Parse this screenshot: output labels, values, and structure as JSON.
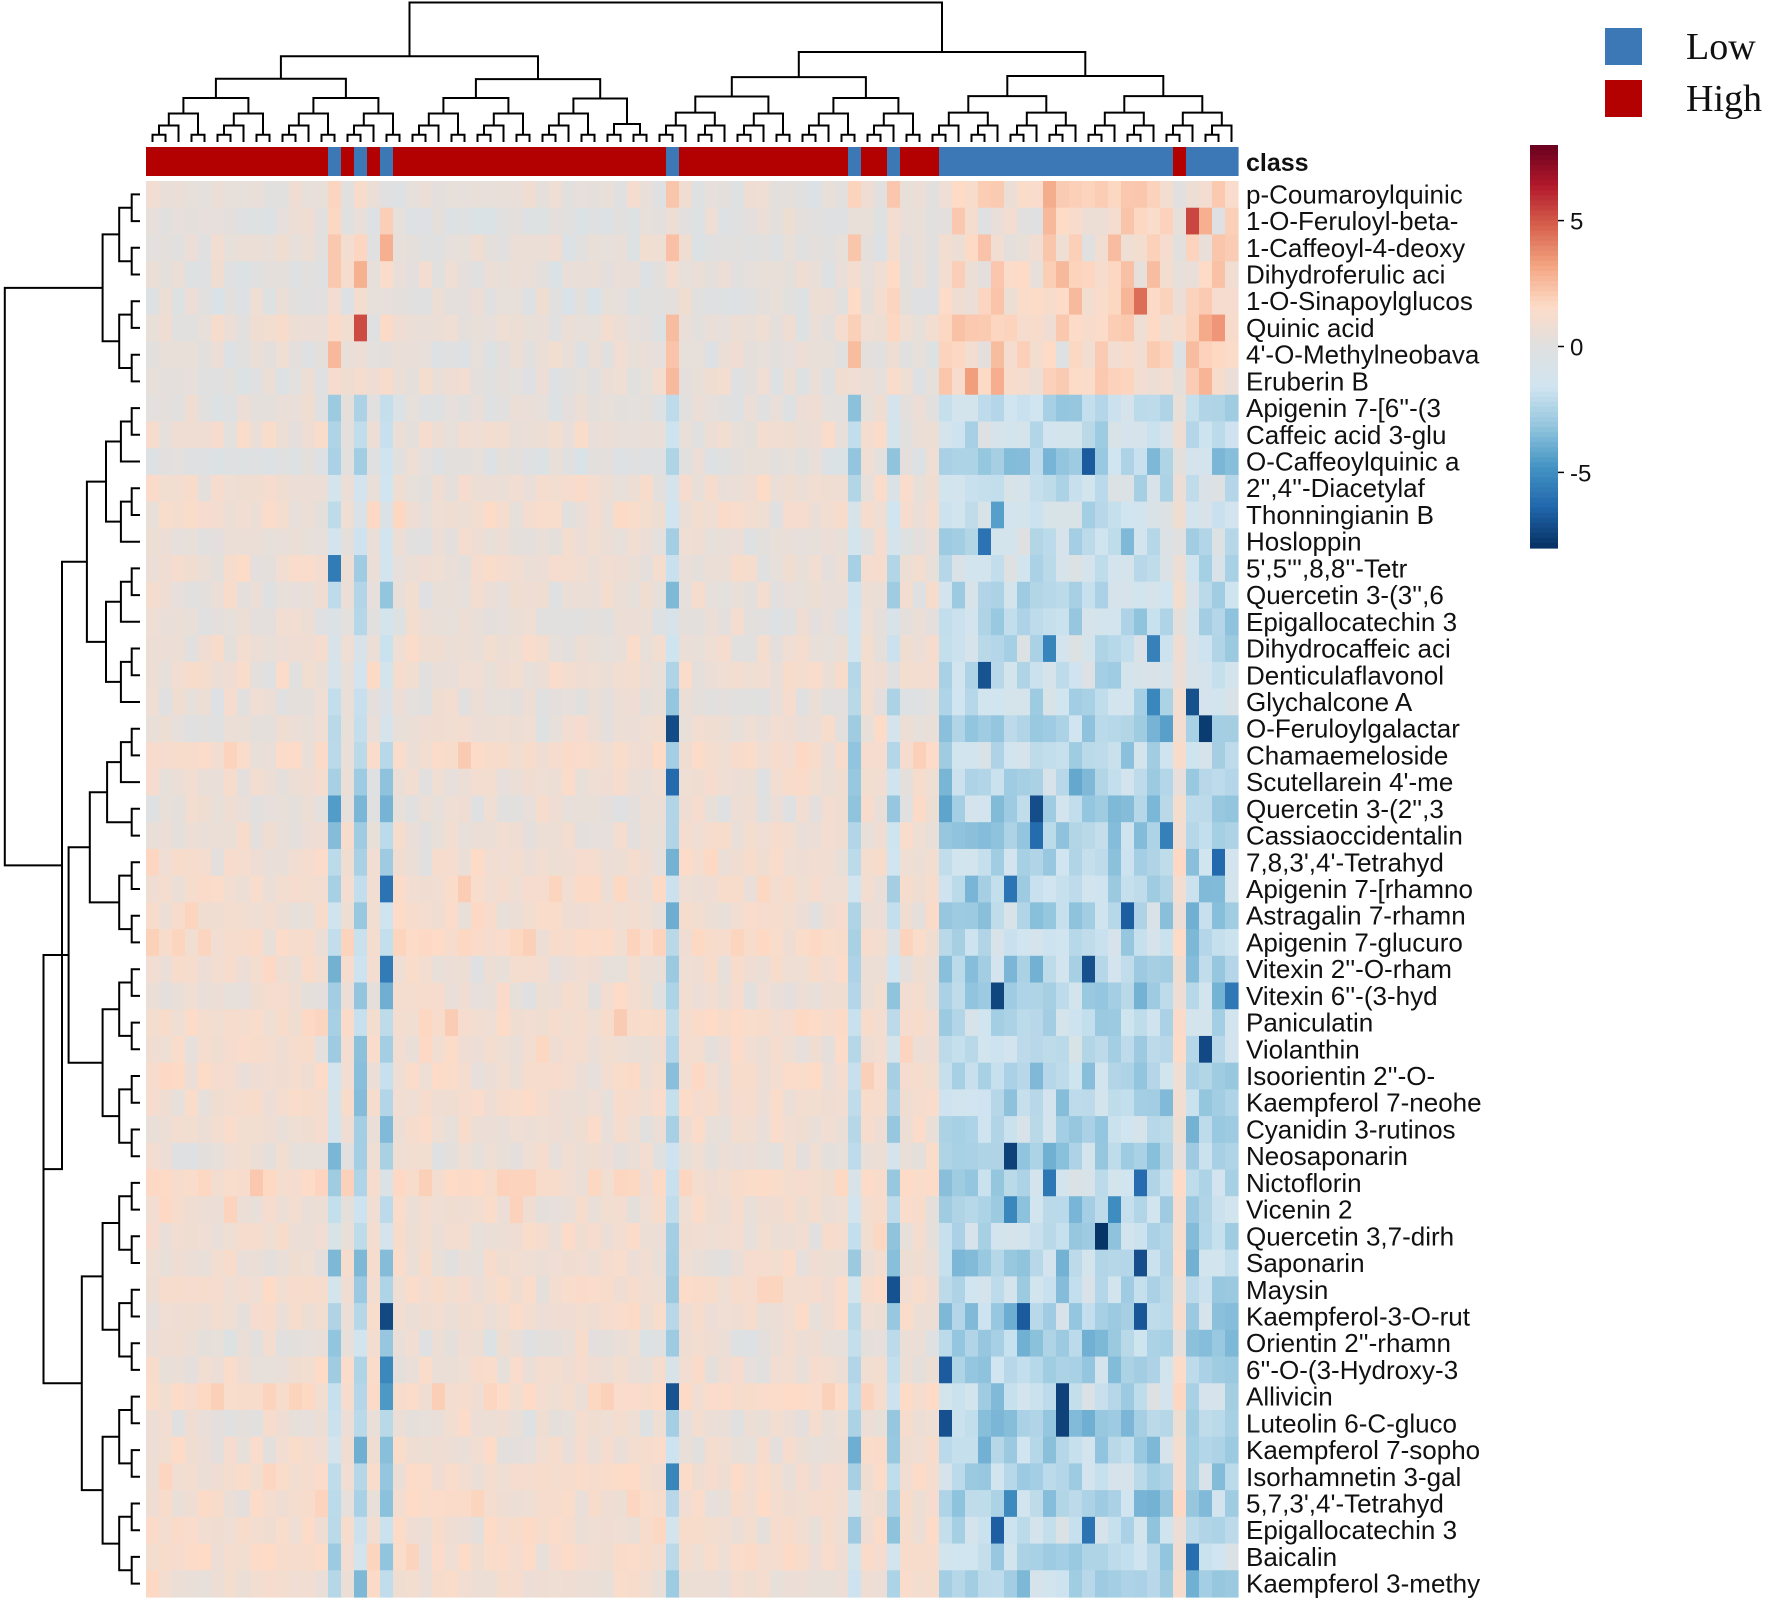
{
  "chart_data": {
    "type": "heatmap",
    "title": "",
    "xlabel": "",
    "ylabel": "",
    "annotation_label": "class",
    "legend": {
      "placement": "top-right",
      "entries": [
        {
          "label": "Low",
          "color": "#3b78b5"
        },
        {
          "label": "High",
          "color": "#b30000"
        }
      ]
    },
    "color_scale": {
      "range": [
        -8,
        8
      ],
      "ticks": [
        5,
        0,
        -5
      ],
      "tick_labels": [
        "5",
        "0",
        "-5"
      ],
      "colors": [
        "#053061",
        "#2166ac",
        "#4393c3",
        "#92c5de",
        "#d1e5f0",
        "#e0e0e0",
        "#fddbc7",
        "#f4a582",
        "#d6604d",
        "#b2182b",
        "#67001f"
      ]
    },
    "num_samples": 84,
    "sample_class_runs": [
      {
        "class": "High",
        "count": 14
      },
      {
        "class": "Low",
        "count": 1
      },
      {
        "class": "High",
        "count": 1
      },
      {
        "class": "Low",
        "count": 1
      },
      {
        "class": "High",
        "count": 1
      },
      {
        "class": "Low",
        "count": 1
      },
      {
        "class": "High",
        "count": 21
      },
      {
        "class": "Low",
        "count": 1
      },
      {
        "class": "High",
        "count": 13
      },
      {
        "class": "Low",
        "count": 1
      },
      {
        "class": "High",
        "count": 2
      },
      {
        "class": "Low",
        "count": 1
      },
      {
        "class": "High",
        "count": 3
      },
      {
        "class": "Low",
        "count": 18
      },
      {
        "class": "High",
        "count": 1
      },
      {
        "class": "Low",
        "count": 4
      }
    ],
    "rows": [
      "p-Coumaroylquinic",
      "1-O-Feruloyl-beta-",
      "1-Caffeoyl-4-deoxy",
      "Dihydroferulic aci",
      "1-O-Sinapoylglucos",
      "Quinic acid",
      "4'-O-Methylneobava",
      "Eruberin B",
      "Apigenin 7-[6''-(3",
      "Caffeic acid 3-glu",
      "O-Caffeoylquinic a",
      "2'',4''-Diacetylaf",
      "Thonningianin B",
      "Hosloppin",
      "5',5''',8,8''-Tetr",
      "Quercetin 3-(3'',6",
      "Epigallocatechin 3",
      "Dihydrocaffeic aci",
      "Denticulaflavonol",
      "Glychalcone A",
      "O-Feruloylgalactar",
      "Chamaemeloside",
      "Scutellarein 4'-me",
      "Quercetin 3-(2'',3",
      "Cassiaoccidentalin",
      "7,8,3',4'-Tetrahyd",
      "Apigenin 7-[rhamno",
      "Astragalin 7-rhamn",
      "Apigenin 7-glucuro",
      "Vitexin 2''-O-rham",
      "Vitexin 6''-(3-hyd",
      "Paniculatin",
      "Violanthin",
      "Isoorientin 2''-O-",
      "Kaempferol 7-neohe",
      "Cyanidin 3-rutinos",
      "Neosaponarin",
      "Nictoflorin",
      "Vicenin 2",
      "Quercetin 3,7-dirh",
      "Saponarin",
      "Maysin",
      "Kaempferol-3-O-rut",
      "Orientin 2''-rhamn",
      "6''-O-(3-Hydroxy-3",
      "Allivicin",
      "Luteolin 6-C-gluco",
      "Kaempferol 7-sopho",
      "Isorhamnetin 3-gal",
      "5,7,3',4'-Tetrahyd",
      "Epigallocatechin 3",
      "Baicalin",
      "Kaempferol 3-methy"
    ],
    "row_groups": [
      {
        "rows": [
          0,
          7
        ],
        "low_group_mean": 1.5,
        "high_group_mean": 0.3
      },
      {
        "rows": [
          8,
          19
        ],
        "low_group_mean": -1.8,
        "high_group_mean": 0.6
      },
      {
        "rows": [
          20,
          52
        ],
        "low_group_mean": -2.3,
        "high_group_mean": 1.0
      }
    ]
  }
}
